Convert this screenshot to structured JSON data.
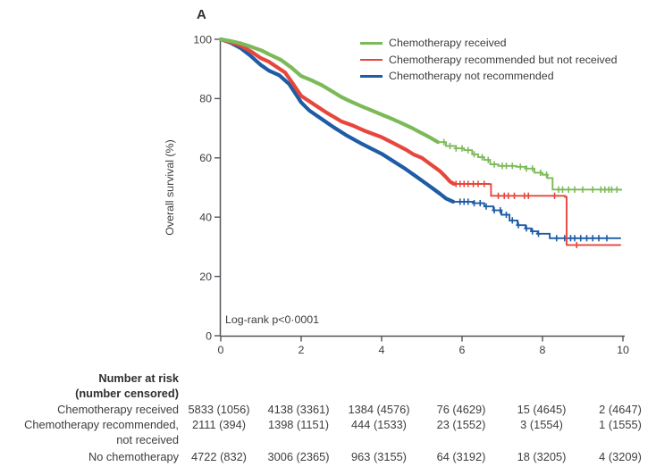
{
  "panel_label": "A",
  "colors": {
    "text": "#3d3d3d",
    "axis": "#54565b"
  },
  "chart_data": {
    "type": "line",
    "subtype": "kaplan-meier-survival",
    "title": "",
    "xlabel": "",
    "ylabel": "Overall survival (%)",
    "xlim": [
      0,
      10
    ],
    "ylim": [
      0,
      100
    ],
    "xticks": [
      0,
      2,
      4,
      6,
      8,
      10
    ],
    "yticks": [
      0,
      20,
      40,
      60,
      80,
      100
    ],
    "grid": false,
    "legend_position": "top-right",
    "annotation": "Log-rank p<0·0001",
    "series": [
      {
        "name": "Chemotherapy received",
        "color": "#7cba59",
        "step_from": 5.4,
        "points": [
          [
            0,
            100
          ],
          [
            0.25,
            99.4
          ],
          [
            0.5,
            98.6
          ],
          [
            0.75,
            97.5
          ],
          [
            1,
            96.3
          ],
          [
            1.25,
            94.6
          ],
          [
            1.5,
            93
          ],
          [
            1.75,
            90.5
          ],
          [
            2,
            87.6
          ],
          [
            2.25,
            86.2
          ],
          [
            2.5,
            84.6
          ],
          [
            2.75,
            82.6
          ],
          [
            3,
            80.5
          ],
          [
            3.25,
            78.9
          ],
          [
            3.5,
            77.4
          ],
          [
            3.75,
            76
          ],
          [
            4,
            74.6
          ],
          [
            4.25,
            73.2
          ],
          [
            4.5,
            71.7
          ],
          [
            4.75,
            70.1
          ],
          [
            5,
            68.3
          ],
          [
            5.2,
            66.9
          ],
          [
            5.4,
            65.3
          ],
          [
            5.6,
            64
          ],
          [
            5.85,
            63.2
          ],
          [
            6.05,
            62.6
          ],
          [
            6.25,
            61.2
          ],
          [
            6.4,
            60.2
          ],
          [
            6.55,
            59.3
          ],
          [
            6.7,
            57.8
          ],
          [
            6.9,
            57.3
          ],
          [
            7.35,
            57
          ],
          [
            7.6,
            56.4
          ],
          [
            7.8,
            55
          ],
          [
            8,
            54.3
          ],
          [
            8.12,
            53.2
          ],
          [
            8.25,
            49.3
          ],
          [
            9.95,
            48.9
          ]
        ],
        "censors": [
          5.55,
          5.7,
          5.85,
          6.0,
          6.15,
          6.3,
          6.5,
          6.65,
          6.8,
          7.0,
          7.1,
          7.25,
          7.45,
          7.6,
          7.75,
          7.95,
          8.1,
          8.4,
          8.5,
          8.65,
          8.8,
          9.0,
          9.25,
          9.45,
          9.55,
          9.65,
          9.72,
          9.85
        ]
      },
      {
        "name": "Chemotherapy recommended but not received",
        "color": "#e7463c",
        "step_from": 5.8,
        "points": [
          [
            0,
            100
          ],
          [
            0.25,
            99
          ],
          [
            0.5,
            97.8
          ],
          [
            0.75,
            95.9
          ],
          [
            1,
            93.6
          ],
          [
            1.2,
            92.4
          ],
          [
            1.4,
            90.6
          ],
          [
            1.6,
            88.8
          ],
          [
            1.8,
            84.9
          ],
          [
            2,
            80.9
          ],
          [
            2.3,
            78.2
          ],
          [
            2.6,
            75.5
          ],
          [
            3,
            72.3
          ],
          [
            3.3,
            70.8
          ],
          [
            3.6,
            69
          ],
          [
            4,
            67
          ],
          [
            4.3,
            64.9
          ],
          [
            4.6,
            62.8
          ],
          [
            4.8,
            61.1
          ],
          [
            5,
            60
          ],
          [
            5.2,
            58
          ],
          [
            5.45,
            55.5
          ],
          [
            5.6,
            53.5
          ],
          [
            5.7,
            52
          ],
          [
            5.8,
            51.2
          ],
          [
            6.68,
            51.1
          ],
          [
            6.72,
            47.2
          ],
          [
            8.56,
            46.8
          ],
          [
            8.6,
            30.6
          ],
          [
            9.93,
            30.4
          ]
        ],
        "censors": [
          5.85,
          5.95,
          6.05,
          6.15,
          6.28,
          6.4,
          6.55,
          6.9,
          7.05,
          7.15,
          7.3,
          7.55,
          7.65,
          8.3,
          8.85
        ]
      },
      {
        "name": "Chemotherapy not recommended",
        "color": "#1e5ca6",
        "step_from": 5.78,
        "points": [
          [
            0,
            100
          ],
          [
            0.25,
            98.8
          ],
          [
            0.5,
            97
          ],
          [
            0.75,
            94.3
          ],
          [
            1,
            91.3
          ],
          [
            1.2,
            89.4
          ],
          [
            1.45,
            87.9
          ],
          [
            1.7,
            84.9
          ],
          [
            1.85,
            81.8
          ],
          [
            2,
            78.7
          ],
          [
            2.2,
            76
          ],
          [
            2.5,
            73.2
          ],
          [
            2.8,
            70.4
          ],
          [
            3.1,
            67.8
          ],
          [
            3.5,
            64.8
          ],
          [
            3.8,
            62.7
          ],
          [
            4,
            61.4
          ],
          [
            4.3,
            58.8
          ],
          [
            4.6,
            56.2
          ],
          [
            4.9,
            53.3
          ],
          [
            5.1,
            51.4
          ],
          [
            5.3,
            49.4
          ],
          [
            5.45,
            47.9
          ],
          [
            5.6,
            46.3
          ],
          [
            5.78,
            45.2
          ],
          [
            6.3,
            44.7
          ],
          [
            6.55,
            43.6
          ],
          [
            6.78,
            42.3
          ],
          [
            6.98,
            40.8
          ],
          [
            7.18,
            38.9
          ],
          [
            7.38,
            37.3
          ],
          [
            7.58,
            36.2
          ],
          [
            7.72,
            35.2
          ],
          [
            7.88,
            34.4
          ],
          [
            8.18,
            32.9
          ],
          [
            9.95,
            32.9
          ]
        ],
        "censors": [
          5.95,
          6.05,
          6.15,
          6.3,
          6.45,
          6.6,
          6.8,
          6.95,
          7.1,
          7.25,
          7.4,
          7.6,
          7.75,
          7.9,
          8.35,
          8.55,
          8.7,
          8.8,
          8.95,
          9.1,
          9.25,
          9.4,
          9.6
        ]
      }
    ]
  },
  "risk_table": {
    "header": [
      "Number at risk",
      "(number censored)"
    ],
    "rows": [
      {
        "label": [
          "Chemotherapy received"
        ],
        "values": [
          "5833 (1056)",
          "4138 (3361)",
          "1384 (4576)",
          "76 (4629)",
          "15 (4645)",
          "2 (4647)"
        ]
      },
      {
        "label": [
          "Chemotherapy recommended,",
          "not received"
        ],
        "values": [
          "2111 (394)",
          "1398 (1151)",
          "444 (1533)",
          "23 (1552)",
          "3 (1554)",
          "1 (1555)"
        ]
      },
      {
        "label": [
          "No chemotherapy"
        ],
        "values": [
          "4722 (832)",
          "3006 (2365)",
          "963 (3155)",
          "64 (3192)",
          "18 (3205)",
          "4 (3209)"
        ]
      }
    ]
  }
}
